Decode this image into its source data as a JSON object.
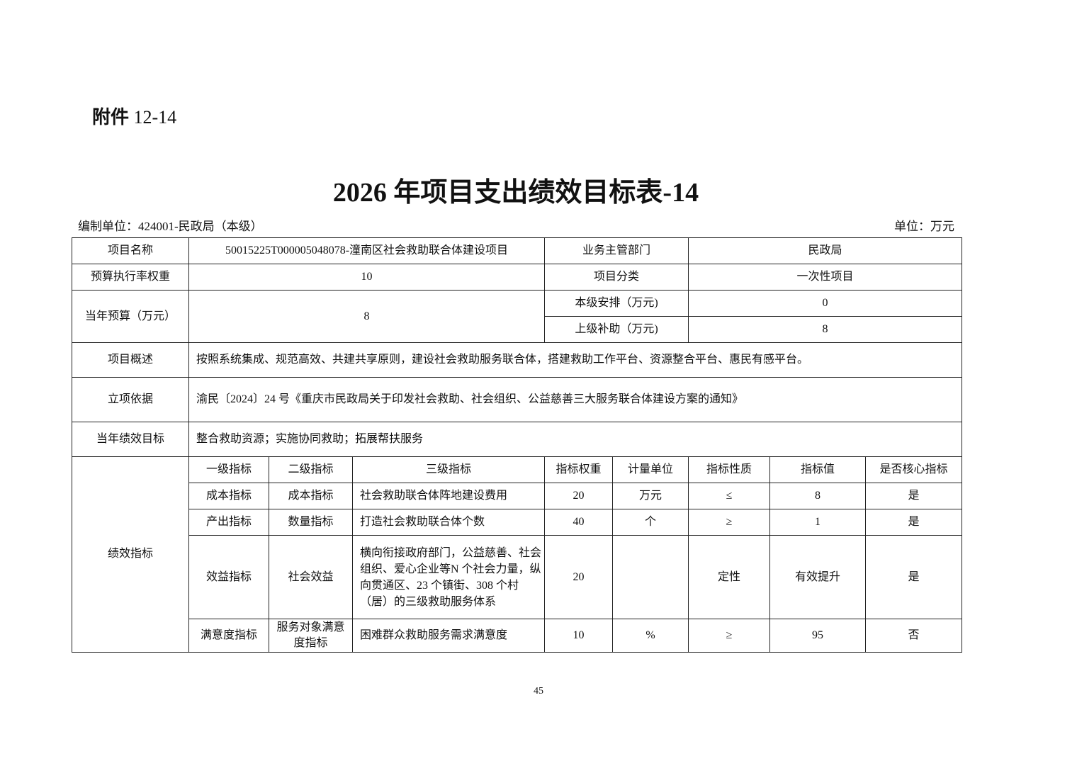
{
  "attachment": {
    "label": "附件",
    "number": "12-14"
  },
  "title": "2026 年项目支出绩效目标表-14",
  "compiler": "编制单位：424001-民政局（本级）",
  "unit": "单位：万元",
  "info": {
    "name_label": "项目名称",
    "name": "50015225T000005048078-潼南区社会救助联合体建设项目",
    "dept_label": "业务主管部门",
    "dept": "民政局",
    "weight_label": "预算执行率权重",
    "weight": "10",
    "category_label": "项目分类",
    "category": "一次性项目",
    "budget_label": "当年预算（万元）",
    "budget": "8",
    "local_label": "本级安排（万元)",
    "local": "0",
    "upper_label": "上级补助（万元)",
    "upper": "8",
    "overview_label": "项目概述",
    "overview": "按照系统集成、规范高效、共建共享原则，建设社会救助服务联合体，搭建救助工作平台、资源整合平台、惠民有感平台。",
    "basis_label": "立项依据",
    "basis": "渝民〔2024〕24 号《重庆市民政局关于印发社会救助、社会组织、公益慈善三大服务联合体建设方案的通知》",
    "goal_label": "当年绩效目标",
    "goal": "整合救助资源；实施协同救助；拓展帮扶服务"
  },
  "indicators": {
    "label": "绩效指标",
    "headers": [
      "一级指标",
      "二级指标",
      "三级指标",
      "指标权重",
      "计量单位",
      "指标性质",
      "指标值",
      "是否核心指标"
    ],
    "rows": [
      [
        "成本指标",
        "成本指标",
        "社会救助联合体阵地建设费用",
        "20",
        "万元",
        "≤",
        "8",
        "是"
      ],
      [
        "产出指标",
        "数量指标",
        "打造社会救助联合体个数",
        "40",
        "个",
        "≥",
        "1",
        "是"
      ],
      [
        "效益指标",
        "社会效益",
        "横向衔接政府部门，公益慈善、社会组织、爱心企业等N 个社会力量，纵向贯通区、23 个镇街、308 个村（居）的三级救助服务体系",
        "20",
        "",
        "定性",
        "有效提升",
        "是"
      ],
      [
        "满意度指标",
        "服务对象满意度指标",
        "困难群众救助服务需求满意度",
        "10",
        "%",
        "≥",
        "95",
        "否"
      ]
    ]
  },
  "page_number": "45"
}
